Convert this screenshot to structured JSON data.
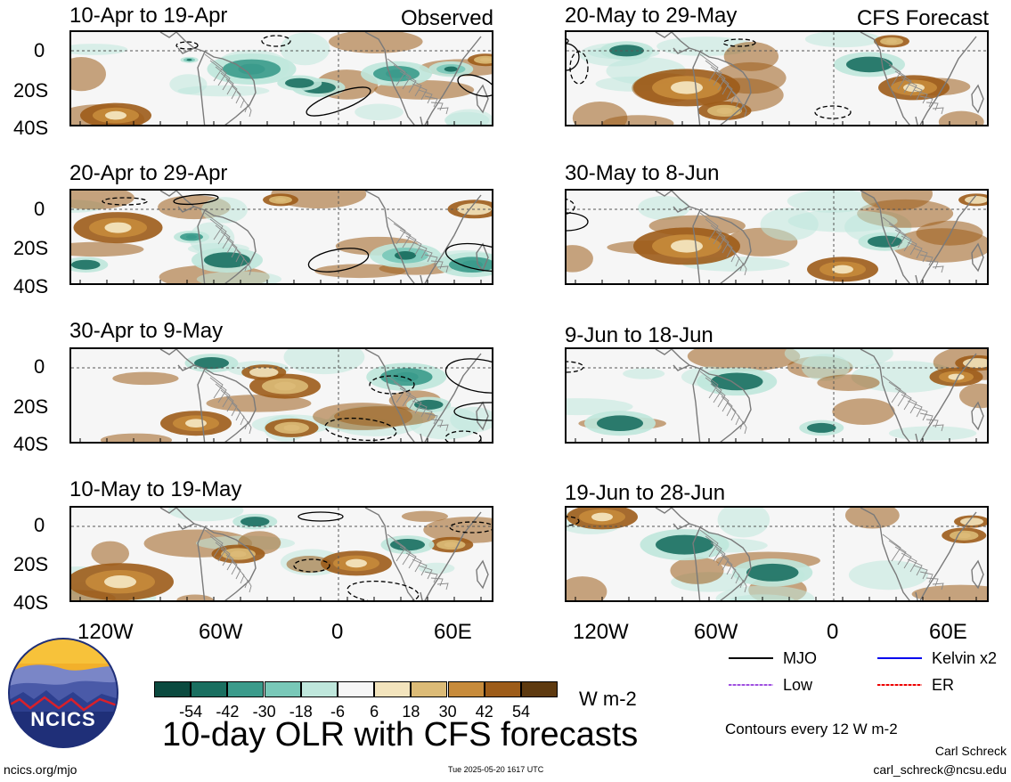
{
  "panels": {
    "left": [
      {
        "title": "10-Apr to 19-Apr",
        "label": "Observed"
      },
      {
        "title": "20-Apr to 29-Apr",
        "label": ""
      },
      {
        "title": "30-Apr to 9-May",
        "label": ""
      },
      {
        "title": "10-May to 19-May",
        "label": ""
      }
    ],
    "right": [
      {
        "title": "20-May to 29-May",
        "label": "CFS Forecast"
      },
      {
        "title": "30-May to 8-Jun",
        "label": ""
      },
      {
        "title": "9-Jun to 18-Jun",
        "label": ""
      },
      {
        "title": "19-Jun to 28-Jun",
        "label": ""
      }
    ]
  },
  "axes": {
    "lat_ticks": [
      "0",
      "20S",
      "40S"
    ],
    "lon_ticks": [
      "120W",
      "60W",
      "0",
      "60E"
    ]
  },
  "colorbar": {
    "unit": "W m-2",
    "labels": [
      "-54",
      "-42",
      "-30",
      "-18",
      "-6",
      "6",
      "18",
      "30",
      "42",
      "54"
    ],
    "colors": [
      "#0b4a3f",
      "#1a6f60",
      "#3b9b8b",
      "#79c8b8",
      "#bfe7dc",
      "#f6f6f6",
      "#f3e4bd",
      "#dcbb77",
      "#c78b3b",
      "#9d5c19",
      "#5e3a10"
    ]
  },
  "legend": {
    "items": [
      {
        "label": "MJO",
        "color": "#000000"
      },
      {
        "label": "Kelvin x2",
        "color": "#0000ee"
      },
      {
        "label": "Low",
        "color": "#a050e0"
      },
      {
        "label": "ER",
        "color": "#ee0000"
      }
    ],
    "contours_note": "Contours every 12 W m-2"
  },
  "main_title": "10-day OLR with CFS forecasts",
  "logo_text": "NCICS",
  "footer": {
    "url": "ncics.org/mjo",
    "timestamp": "Tue 2025-05-20 1617 UTC",
    "author": "Carl Schreck",
    "email": "carl_schreck@ncsu.edu"
  }
}
